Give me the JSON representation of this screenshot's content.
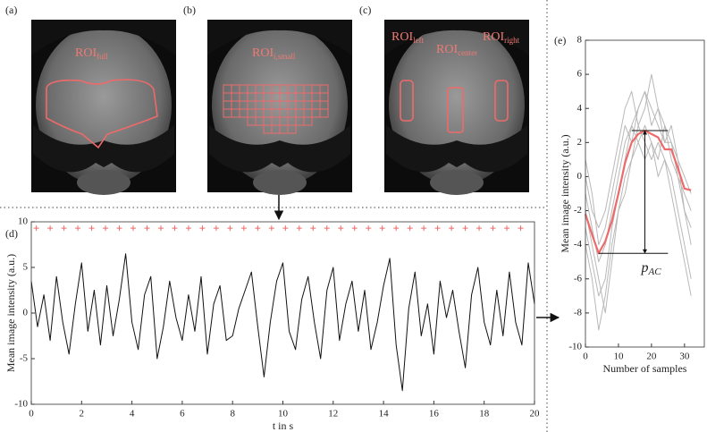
{
  "panels": [
    {
      "label": "(a)",
      "rois": [
        {
          "main": "ROI",
          "sub": "full"
        }
      ]
    },
    {
      "label": "(b)",
      "rois": [
        {
          "main": "ROI",
          "sub": "i,small"
        }
      ]
    },
    {
      "label": "(c)",
      "rois": [
        {
          "main": "ROI",
          "sub": "left"
        },
        {
          "main": "ROI",
          "sub": "center"
        },
        {
          "main": "ROI",
          "sub": "right"
        }
      ]
    }
  ],
  "chart_data": [
    {
      "type": "line",
      "label": "(d)",
      "x_label": "t in s",
      "y_label": "Mean image intensity (a.u.)",
      "xlim": [
        0,
        20
      ],
      "ylim": [
        -10,
        10
      ],
      "xticks": [
        0,
        2,
        4,
        6,
        8,
        10,
        12,
        14,
        16,
        18,
        20
      ],
      "yticks": [
        -10,
        -5,
        0,
        5,
        10
      ],
      "x": [
        0,
        0.25,
        0.5,
        0.75,
        1,
        1.25,
        1.5,
        1.75,
        2,
        2.25,
        2.5,
        2.75,
        3,
        3.25,
        3.5,
        3.75,
        4,
        4.25,
        4.5,
        4.75,
        5,
        5.25,
        5.5,
        5.75,
        6,
        6.25,
        6.5,
        6.75,
        7,
        7.25,
        7.5,
        7.75,
        8,
        8.25,
        8.5,
        8.75,
        9,
        9.25,
        9.5,
        9.75,
        10,
        10.25,
        10.5,
        10.75,
        11,
        11.25,
        11.5,
        11.75,
        12,
        12.25,
        12.5,
        12.75,
        13,
        13.25,
        13.5,
        13.75,
        14,
        14.25,
        14.5,
        14.75,
        15,
        15.25,
        15.5,
        15.75,
        16,
        16.25,
        16.5,
        16.75,
        17,
        17.25,
        17.5,
        17.75,
        18,
        18.25,
        18.5,
        18.75,
        19,
        19.25,
        19.5,
        19.75,
        20
      ],
      "series": [
        {
          "color": "#111111",
          "values": [
            3.5,
            -1.5,
            2.0,
            -3.0,
            4.0,
            -1.0,
            -4.5,
            1.0,
            5.5,
            -2.0,
            2.5,
            -3.5,
            3.0,
            -2.5,
            1.5,
            6.5,
            -1.0,
            -4.0,
            2.0,
            4.0,
            -5.0,
            -1.5,
            3.5,
            -0.5,
            -3.0,
            2.0,
            -2.0,
            4.0,
            -4.5,
            1.0,
            3.0,
            -3.0,
            -2.5,
            0.5,
            2.5,
            4.5,
            -1.5,
            -7.0,
            -1.0,
            3.5,
            5.5,
            -2.0,
            -4.0,
            1.5,
            4.0,
            -1.0,
            -5.0,
            2.5,
            5.0,
            -3.0,
            1.0,
            3.5,
            -2.0,
            2.5,
            -4.0,
            -1.0,
            3.0,
            6.0,
            -3.5,
            -8.5,
            0.5,
            4.5,
            -2.5,
            1.0,
            -4.5,
            3.5,
            -0.5,
            2.5,
            -2.0,
            -6.0,
            2.0,
            5.0,
            -1.0,
            -3.5,
            2.5,
            -2.5,
            4.5,
            -1.0,
            -3.5,
            5.5,
            1.0
          ]
        },
        {
          "color": "#ee6a6a",
          "marker": "+",
          "x": [
            0.2,
            0.75,
            1.3,
            1.85,
            2.4,
            2.95,
            3.5,
            4.05,
            4.6,
            5.15,
            5.7,
            6.25,
            6.8,
            7.35,
            7.9,
            8.45,
            9.0,
            9.55,
            10.1,
            10.65,
            11.2,
            11.75,
            12.3,
            12.85,
            13.4,
            13.95,
            14.5,
            15.05,
            15.6,
            16.15,
            16.7,
            17.25,
            17.8,
            18.35,
            18.9,
            19.45
          ],
          "values": [
            9.3,
            9.3,
            9.3,
            9.3,
            9.3,
            9.3,
            9.3,
            9.3,
            9.3,
            9.3,
            9.3,
            9.3,
            9.3,
            9.3,
            9.3,
            9.3,
            9.3,
            9.3,
            9.3,
            9.3,
            9.3,
            9.3,
            9.3,
            9.3,
            9.3,
            9.3,
            9.3,
            9.3,
            9.3,
            9.3,
            9.3,
            9.3,
            9.3,
            9.3,
            9.3,
            9.3
          ]
        }
      ]
    },
    {
      "type": "line",
      "label": "(e)",
      "x_label": "Number of samples",
      "y_label": "Mean image intensity (a.u.)",
      "xlim": [
        0,
        36
      ],
      "ylim": [
        -10,
        8
      ],
      "xticks": [
        0,
        10,
        20,
        30
      ],
      "yticks": [
        -10,
        -8,
        -6,
        -4,
        -2,
        0,
        2,
        4,
        6,
        8
      ],
      "x": [
        0,
        2,
        4,
        6,
        8,
        10,
        12,
        14,
        16,
        18,
        20,
        22,
        24,
        26,
        28,
        30,
        32
      ],
      "series": [
        {
          "color": "#b8b8b8",
          "values": [
            -1,
            -3,
            -5,
            -4,
            -2,
            0,
            2,
            3,
            4,
            5,
            4,
            3,
            2,
            2,
            1,
            0,
            -1
          ]
        },
        {
          "color": "#b8b8b8",
          "values": [
            -3,
            -5,
            -7,
            -6,
            -3,
            -1,
            1,
            3,
            2,
            3,
            2,
            1,
            3,
            2,
            0,
            -2,
            -3
          ]
        },
        {
          "color": "#b8b8b8",
          "values": [
            0,
            -2,
            -3,
            -2,
            0,
            2,
            4,
            5,
            3,
            4,
            6,
            4,
            3,
            1,
            0,
            -1,
            -2
          ]
        },
        {
          "color": "#b8b8b8",
          "values": [
            -2,
            -4,
            -6,
            -8,
            -5,
            -2,
            0,
            1,
            3,
            2,
            1,
            2,
            1,
            0,
            -2,
            -4,
            -6
          ]
        },
        {
          "color": "#b8b8b8",
          "values": [
            1,
            -1,
            -4,
            -3,
            -1,
            1,
            3,
            2,
            4,
            5,
            3,
            4,
            2,
            3,
            1,
            -2,
            -4
          ]
        },
        {
          "color": "#b8b8b8",
          "values": [
            -4,
            -6,
            -9,
            -7,
            -4,
            -2,
            -1,
            1,
            2,
            1,
            2,
            0,
            1,
            -1,
            -3,
            -5,
            -7
          ]
        },
        {
          "color": "#ee6a6a",
          "width": 2.2,
          "values": [
            -2.2,
            -3.4,
            -4.5,
            -3.8,
            -2.6,
            -1,
            0.8,
            2.0,
            2.5,
            2.7,
            2.5,
            2.3,
            1.6,
            1.6,
            0.5,
            -0.7,
            -0.8
          ]
        }
      ],
      "annotation": {
        "main": "p",
        "sub": "AC",
        "top": 2.7,
        "bottom": -4.5,
        "x_arrow": 18,
        "top_x": [
          14,
          25
        ],
        "bottom_x": [
          4,
          25
        ]
      }
    }
  ]
}
